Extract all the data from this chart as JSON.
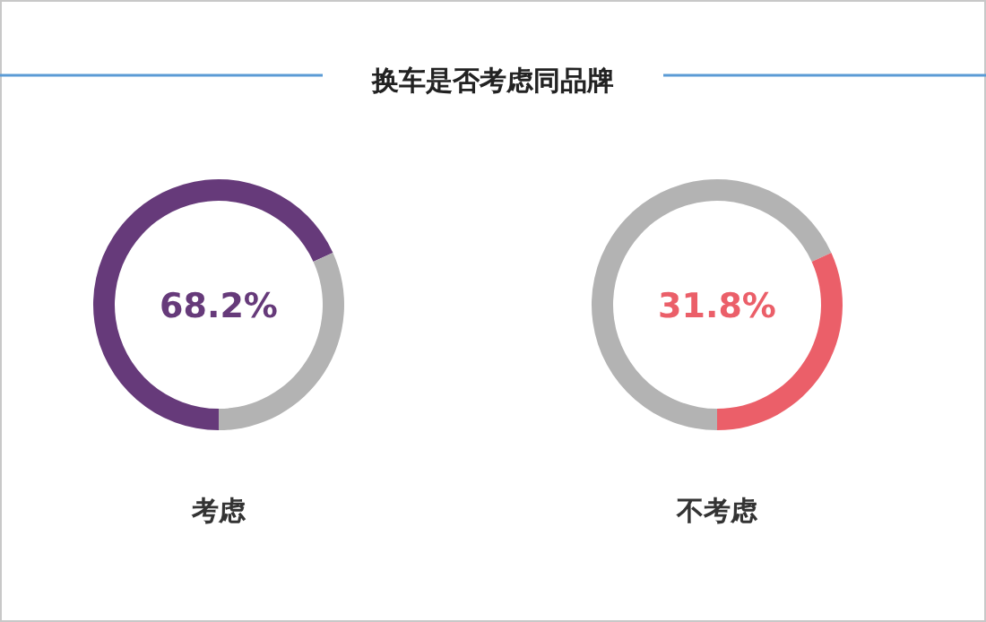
{
  "chart_data": [
    {
      "type": "donut",
      "title": "换车是否考虑同品牌",
      "categories": [
        "考虑",
        null
      ],
      "values": [
        68.2,
        31.8
      ],
      "colors": [
        "#663a7a",
        "#b3b3b3"
      ],
      "value_labels": [
        "68.2%",
        null
      ]
    },
    {
      "type": "donut",
      "categories": [
        null,
        "不考虑"
      ],
      "values": [
        68.2,
        31.8
      ],
      "colors": [
        "#b3b3b3",
        "#eb5f69"
      ],
      "value_labels": [
        null,
        "31.8%"
      ]
    }
  ]
}
